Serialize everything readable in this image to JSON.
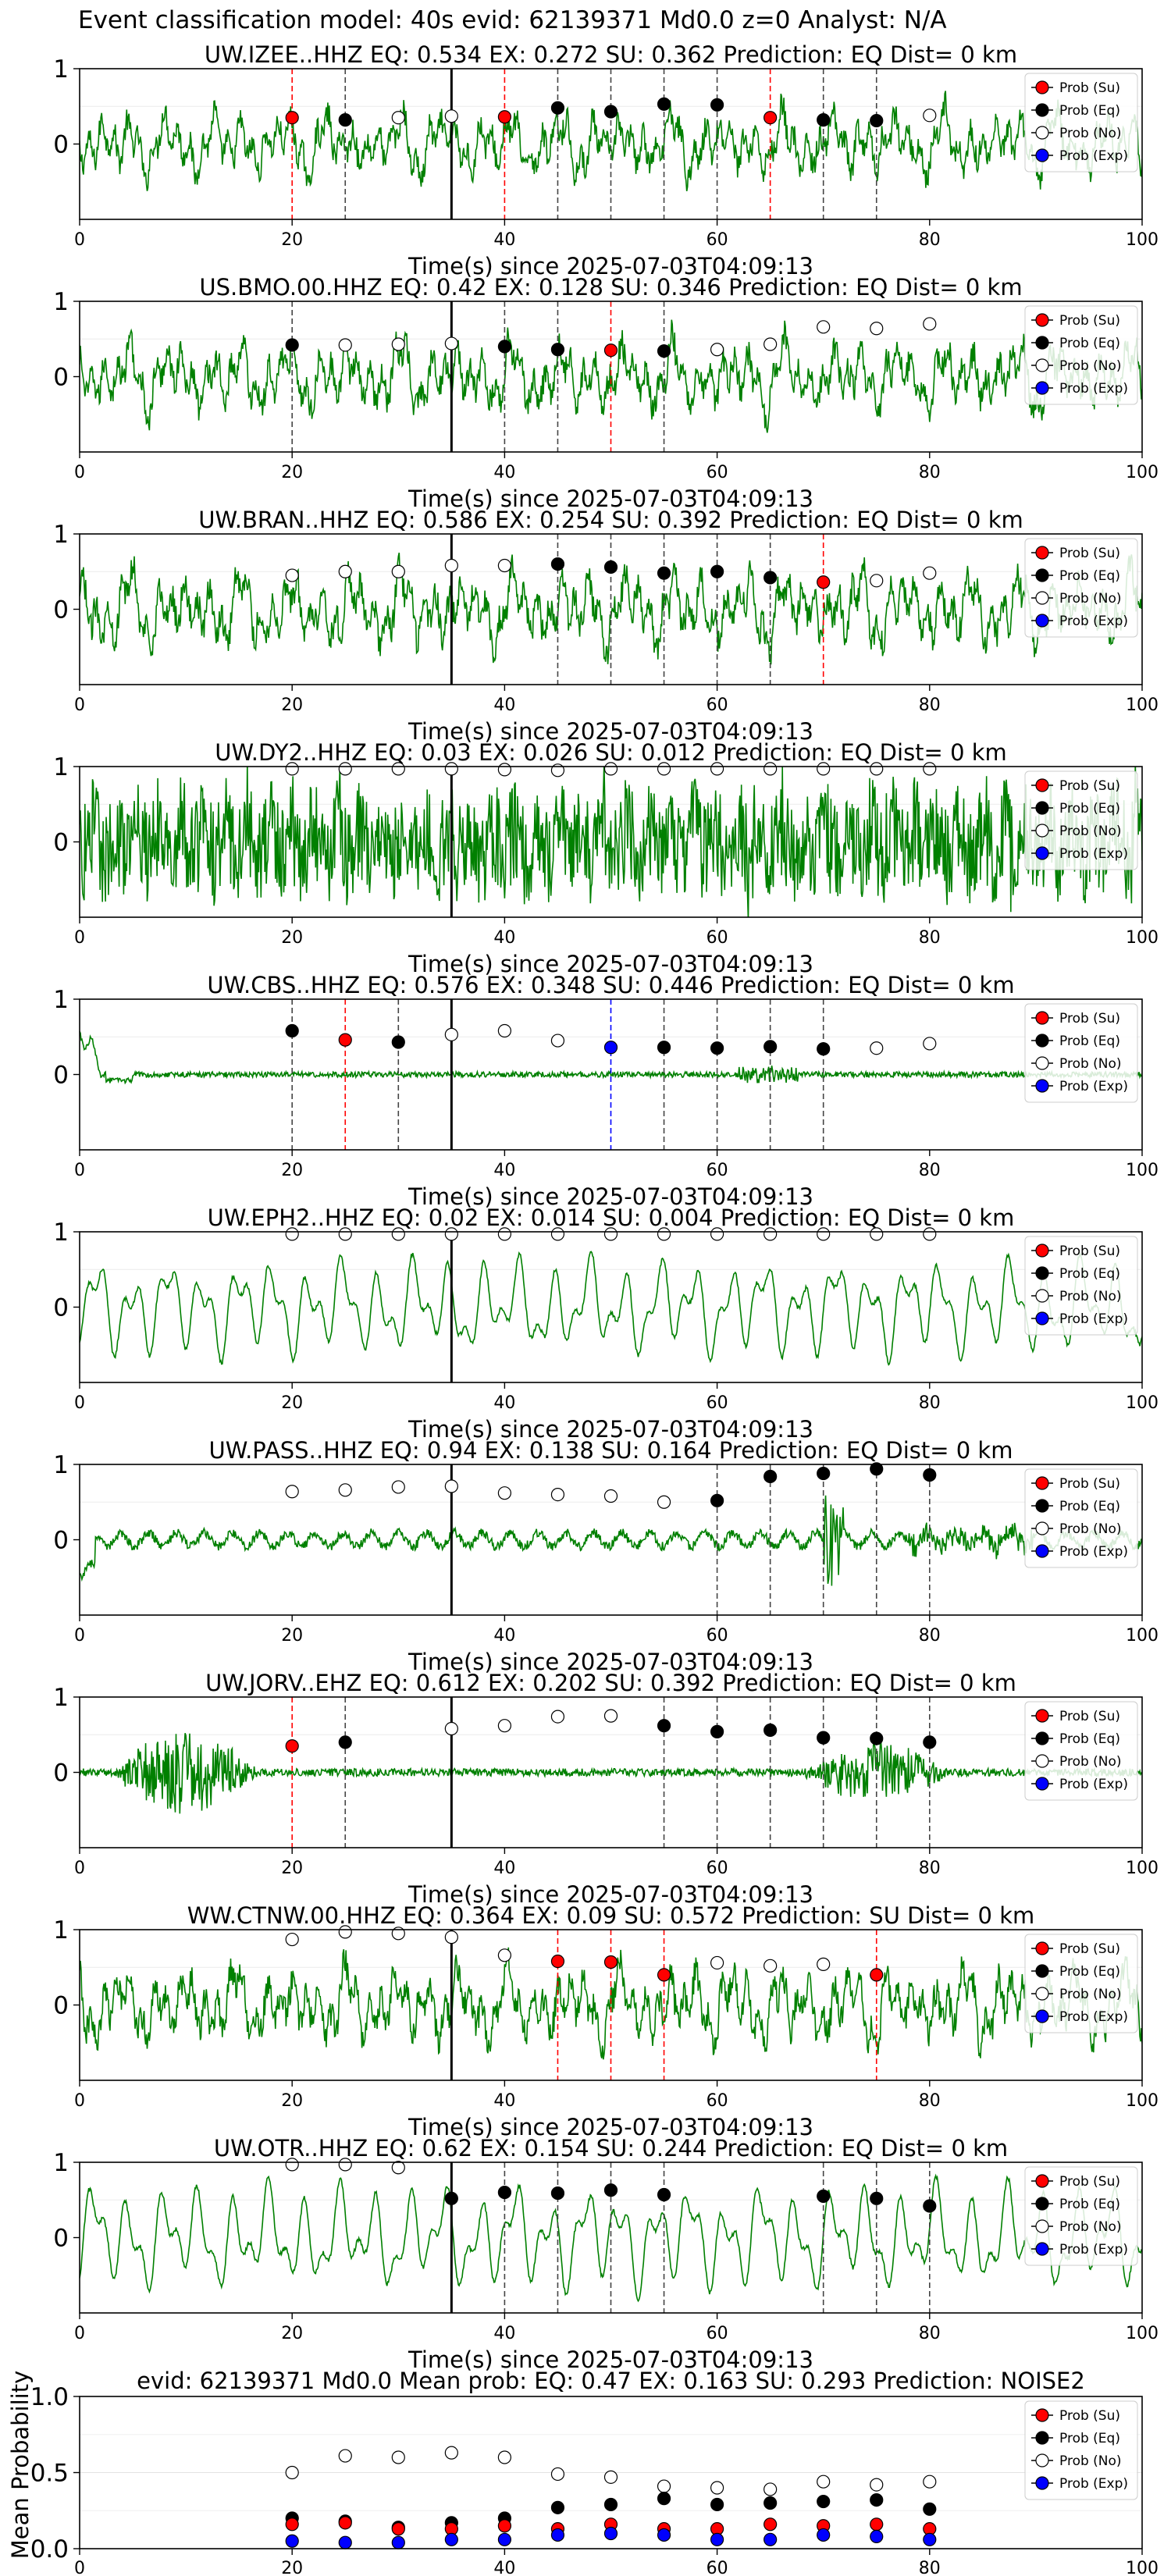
{
  "suptitle": "Event classification model: 40s evid: 62139371 Md0.0 z=0 Analyst: N/A",
  "chart_data": {
    "type": "line",
    "xlim": [
      0,
      100
    ],
    "xticks": [
      0,
      20,
      40,
      60,
      80,
      100
    ],
    "legend_placement": "top-right",
    "legend": [
      "Prob (Su)",
      "Prob (Eq)",
      "Prob (No)",
      "Prob (Exp)"
    ],
    "colors": {
      "su": "#ff0000",
      "eq": "#000000",
      "no": "#ffffff",
      "exp": "#0000ff",
      "waveform": "#008000"
    },
    "pick_line_x": 35,
    "panels": [
      {
        "title": "UW.IZEE..HHZ   EQ: 0.534  EX: 0.272  SU: 0.362   Prediction: EQ    Dist= 0 km",
        "xlabel": "Time(s) since 2025-07-03T04:09:13",
        "ylim": [
          -1,
          1
        ],
        "yticks": [
          0,
          1
        ],
        "waveform_style": "noisy",
        "waveform_amplitude": 0.6,
        "points": [
          {
            "x": 20,
            "y": 0.35,
            "cls": "su"
          },
          {
            "x": 25,
            "y": 0.32,
            "cls": "eq"
          },
          {
            "x": 30,
            "y": 0.35,
            "cls": "no"
          },
          {
            "x": 35,
            "y": 0.37,
            "cls": "no"
          },
          {
            "x": 40,
            "y": 0.36,
            "cls": "su"
          },
          {
            "x": 45,
            "y": 0.48,
            "cls": "eq"
          },
          {
            "x": 50,
            "y": 0.43,
            "cls": "eq"
          },
          {
            "x": 55,
            "y": 0.53,
            "cls": "eq"
          },
          {
            "x": 60,
            "y": 0.52,
            "cls": "eq"
          },
          {
            "x": 65,
            "y": 0.35,
            "cls": "su"
          },
          {
            "x": 70,
            "y": 0.32,
            "cls": "eq"
          },
          {
            "x": 75,
            "y": 0.31,
            "cls": "eq"
          },
          {
            "x": 80,
            "y": 0.38,
            "cls": "no"
          }
        ]
      },
      {
        "title": "US.BMO.00.HHZ   EQ: 0.42  EX: 0.128  SU: 0.346   Prediction: EQ    Dist= 0 km",
        "xlabel": "Time(s) since 2025-07-03T04:09:13",
        "ylim": [
          -1,
          1
        ],
        "yticks": [
          0,
          1
        ],
        "waveform_style": "noisy",
        "waveform_amplitude": 0.65,
        "points": [
          {
            "x": 20,
            "y": 0.42,
            "cls": "eq"
          },
          {
            "x": 25,
            "y": 0.42,
            "cls": "no"
          },
          {
            "x": 30,
            "y": 0.43,
            "cls": "no"
          },
          {
            "x": 35,
            "y": 0.44,
            "cls": "no"
          },
          {
            "x": 40,
            "y": 0.4,
            "cls": "eq"
          },
          {
            "x": 45,
            "y": 0.36,
            "cls": "eq"
          },
          {
            "x": 50,
            "y": 0.35,
            "cls": "su"
          },
          {
            "x": 55,
            "y": 0.34,
            "cls": "eq"
          },
          {
            "x": 60,
            "y": 0.36,
            "cls": "no"
          },
          {
            "x": 65,
            "y": 0.43,
            "cls": "no"
          },
          {
            "x": 70,
            "y": 0.66,
            "cls": "no"
          },
          {
            "x": 75,
            "y": 0.64,
            "cls": "no"
          },
          {
            "x": 80,
            "y": 0.7,
            "cls": "no"
          }
        ]
      },
      {
        "title": "UW.BRAN..HHZ   EQ: 0.586  EX: 0.254  SU: 0.392   Prediction: EQ    Dist= 0 km",
        "xlabel": "Time(s) since 2025-07-03T04:09:13",
        "ylim": [
          -1,
          1
        ],
        "yticks": [
          0,
          1
        ],
        "waveform_style": "noisy",
        "waveform_amplitude": 0.7,
        "points": [
          {
            "x": 20,
            "y": 0.45,
            "cls": "no"
          },
          {
            "x": 25,
            "y": 0.5,
            "cls": "no"
          },
          {
            "x": 30,
            "y": 0.5,
            "cls": "no"
          },
          {
            "x": 35,
            "y": 0.58,
            "cls": "no"
          },
          {
            "x": 40,
            "y": 0.58,
            "cls": "no"
          },
          {
            "x": 45,
            "y": 0.6,
            "cls": "eq"
          },
          {
            "x": 50,
            "y": 0.56,
            "cls": "eq"
          },
          {
            "x": 55,
            "y": 0.48,
            "cls": "eq"
          },
          {
            "x": 60,
            "y": 0.5,
            "cls": "eq"
          },
          {
            "x": 65,
            "y": 0.42,
            "cls": "eq"
          },
          {
            "x": 70,
            "y": 0.36,
            "cls": "su"
          },
          {
            "x": 75,
            "y": 0.38,
            "cls": "no"
          },
          {
            "x": 80,
            "y": 0.48,
            "cls": "no"
          }
        ]
      },
      {
        "title": "UW.DY2..HHZ   EQ: 0.03  EX: 0.026  SU: 0.012   Prediction: EQ    Dist= 0 km",
        "xlabel": "Time(s) since 2025-07-03T04:09:13",
        "ylim": [
          -1,
          1
        ],
        "yticks": [
          0,
          1
        ],
        "waveform_style": "dense",
        "waveform_amplitude": 0.85,
        "points": [
          {
            "x": 20,
            "y": 0.97,
            "cls": "no"
          },
          {
            "x": 25,
            "y": 0.97,
            "cls": "no"
          },
          {
            "x": 30,
            "y": 0.97,
            "cls": "no"
          },
          {
            "x": 35,
            "y": 0.97,
            "cls": "no"
          },
          {
            "x": 40,
            "y": 0.96,
            "cls": "no"
          },
          {
            "x": 45,
            "y": 0.95,
            "cls": "no"
          },
          {
            "x": 50,
            "y": 0.97,
            "cls": "no"
          },
          {
            "x": 55,
            "y": 0.97,
            "cls": "no"
          },
          {
            "x": 60,
            "y": 0.97,
            "cls": "no"
          },
          {
            "x": 65,
            "y": 0.97,
            "cls": "no"
          },
          {
            "x": 70,
            "y": 0.97,
            "cls": "no"
          },
          {
            "x": 75,
            "y": 0.97,
            "cls": "no"
          },
          {
            "x": 80,
            "y": 0.97,
            "cls": "no"
          }
        ]
      },
      {
        "title": "UW.CBS..HHZ   EQ: 0.576  EX: 0.348  SU: 0.446   Prediction: EQ    Dist= 0 km",
        "xlabel": "Time(s) since 2025-07-03T04:09:13",
        "ylim": [
          -1,
          1
        ],
        "yticks": [
          0,
          1
        ],
        "waveform_style": "quiet",
        "waveform_amplitude": 0.06,
        "points": [
          {
            "x": 20,
            "y": 0.58,
            "cls": "eq"
          },
          {
            "x": 25,
            "y": 0.46,
            "cls": "su"
          },
          {
            "x": 30,
            "y": 0.43,
            "cls": "eq"
          },
          {
            "x": 35,
            "y": 0.53,
            "cls": "no"
          },
          {
            "x": 40,
            "y": 0.58,
            "cls": "no"
          },
          {
            "x": 45,
            "y": 0.45,
            "cls": "no"
          },
          {
            "x": 50,
            "y": 0.36,
            "cls": "exp"
          },
          {
            "x": 55,
            "y": 0.36,
            "cls": "eq"
          },
          {
            "x": 60,
            "y": 0.35,
            "cls": "eq"
          },
          {
            "x": 65,
            "y": 0.37,
            "cls": "eq"
          },
          {
            "x": 70,
            "y": 0.34,
            "cls": "eq"
          },
          {
            "x": 75,
            "y": 0.35,
            "cls": "no"
          },
          {
            "x": 80,
            "y": 0.41,
            "cls": "no"
          }
        ]
      },
      {
        "title": "UW.EPH2..HHZ   EQ: 0.02  EX: 0.014  SU: 0.004   Prediction: EQ    Dist= 0 km",
        "xlabel": "Time(s) since 2025-07-03T04:09:13",
        "ylim": [
          -1,
          1
        ],
        "yticks": [
          0,
          1
        ],
        "waveform_style": "smooth",
        "waveform_amplitude": 0.7,
        "points": [
          {
            "x": 20,
            "y": 0.97,
            "cls": "no"
          },
          {
            "x": 25,
            "y": 0.97,
            "cls": "no"
          },
          {
            "x": 30,
            "y": 0.97,
            "cls": "no"
          },
          {
            "x": 35,
            "y": 0.97,
            "cls": "no"
          },
          {
            "x": 40,
            "y": 0.97,
            "cls": "no"
          },
          {
            "x": 45,
            "y": 0.97,
            "cls": "no"
          },
          {
            "x": 50,
            "y": 0.97,
            "cls": "no"
          },
          {
            "x": 55,
            "y": 0.97,
            "cls": "no"
          },
          {
            "x": 60,
            "y": 0.97,
            "cls": "no"
          },
          {
            "x": 65,
            "y": 0.97,
            "cls": "no"
          },
          {
            "x": 70,
            "y": 0.97,
            "cls": "no"
          },
          {
            "x": 75,
            "y": 0.97,
            "cls": "no"
          },
          {
            "x": 80,
            "y": 0.97,
            "cls": "no"
          }
        ]
      },
      {
        "title": "UW.PASS..HHZ   EQ: 0.94  EX: 0.138  SU: 0.164   Prediction: EQ    Dist= 0 km",
        "xlabel": "Time(s) since 2025-07-03T04:09:13",
        "ylim": [
          -1,
          1
        ],
        "yticks": [
          0,
          1
        ],
        "waveform_style": "low",
        "waveform_amplitude": 0.15,
        "points": [
          {
            "x": 20,
            "y": 0.64,
            "cls": "no"
          },
          {
            "x": 25,
            "y": 0.66,
            "cls": "no"
          },
          {
            "x": 30,
            "y": 0.7,
            "cls": "no"
          },
          {
            "x": 35,
            "y": 0.71,
            "cls": "no"
          },
          {
            "x": 40,
            "y": 0.62,
            "cls": "no"
          },
          {
            "x": 45,
            "y": 0.6,
            "cls": "no"
          },
          {
            "x": 50,
            "y": 0.58,
            "cls": "no"
          },
          {
            "x": 55,
            "y": 0.5,
            "cls": "no"
          },
          {
            "x": 60,
            "y": 0.52,
            "cls": "eq"
          },
          {
            "x": 65,
            "y": 0.84,
            "cls": "eq"
          },
          {
            "x": 70,
            "y": 0.88,
            "cls": "eq"
          },
          {
            "x": 75,
            "y": 0.94,
            "cls": "eq"
          },
          {
            "x": 80,
            "y": 0.86,
            "cls": "eq"
          }
        ]
      },
      {
        "title": "UW.JORV..EHZ   EQ: 0.612  EX: 0.202  SU: 0.392   Prediction: EQ    Dist= 0 km",
        "xlabel": "Time(s) since 2025-07-03T04:09:13",
        "ylim": [
          -1,
          1
        ],
        "yticks": [
          0,
          1
        ],
        "waveform_style": "bursts",
        "waveform_amplitude": 0.05,
        "points": [
          {
            "x": 20,
            "y": 0.35,
            "cls": "su"
          },
          {
            "x": 25,
            "y": 0.4,
            "cls": "eq"
          },
          {
            "x": 35,
            "y": 0.58,
            "cls": "no"
          },
          {
            "x": 40,
            "y": 0.62,
            "cls": "no"
          },
          {
            "x": 45,
            "y": 0.74,
            "cls": "no"
          },
          {
            "x": 50,
            "y": 0.75,
            "cls": "no"
          },
          {
            "x": 55,
            "y": 0.62,
            "cls": "eq"
          },
          {
            "x": 60,
            "y": 0.54,
            "cls": "eq"
          },
          {
            "x": 65,
            "y": 0.56,
            "cls": "eq"
          },
          {
            "x": 70,
            "y": 0.46,
            "cls": "eq"
          },
          {
            "x": 75,
            "y": 0.45,
            "cls": "eq"
          },
          {
            "x": 80,
            "y": 0.4,
            "cls": "eq"
          }
        ]
      },
      {
        "title": "WW.CTNW.00.HHZ   EQ: 0.364  EX: 0.09  SU: 0.572   Prediction: SU    Dist= 0 km",
        "xlabel": "Time(s) since 2025-07-03T04:09:13",
        "ylim": [
          -1,
          1
        ],
        "yticks": [
          0,
          1
        ],
        "waveform_style": "noisy",
        "waveform_amplitude": 0.7,
        "points": [
          {
            "x": 20,
            "y": 0.87,
            "cls": "no"
          },
          {
            "x": 25,
            "y": 0.97,
            "cls": "no"
          },
          {
            "x": 30,
            "y": 0.95,
            "cls": "no"
          },
          {
            "x": 35,
            "y": 0.9,
            "cls": "no"
          },
          {
            "x": 40,
            "y": 0.66,
            "cls": "no"
          },
          {
            "x": 45,
            "y": 0.58,
            "cls": "su"
          },
          {
            "x": 50,
            "y": 0.57,
            "cls": "su"
          },
          {
            "x": 55,
            "y": 0.4,
            "cls": "su"
          },
          {
            "x": 60,
            "y": 0.56,
            "cls": "no"
          },
          {
            "x": 65,
            "y": 0.52,
            "cls": "no"
          },
          {
            "x": 70,
            "y": 0.54,
            "cls": "no"
          },
          {
            "x": 75,
            "y": 0.4,
            "cls": "su"
          }
        ]
      },
      {
        "title": "UW.OTR..HHZ   EQ: 0.62  EX: 0.154  SU: 0.244   Prediction: EQ    Dist= 0 km",
        "xlabel": "Time(s) since 2025-07-03T04:09:13",
        "ylim": [
          -1,
          1
        ],
        "yticks": [
          0,
          1
        ],
        "waveform_style": "smooth",
        "waveform_amplitude": 0.75,
        "points": [
          {
            "x": 20,
            "y": 0.97,
            "cls": "no"
          },
          {
            "x": 25,
            "y": 0.97,
            "cls": "no"
          },
          {
            "x": 30,
            "y": 0.93,
            "cls": "no"
          },
          {
            "x": 35,
            "y": 0.52,
            "cls": "eq"
          },
          {
            "x": 40,
            "y": 0.6,
            "cls": "eq"
          },
          {
            "x": 45,
            "y": 0.59,
            "cls": "eq"
          },
          {
            "x": 50,
            "y": 0.63,
            "cls": "eq"
          },
          {
            "x": 55,
            "y": 0.57,
            "cls": "eq"
          },
          {
            "x": 70,
            "y": 0.55,
            "cls": "eq"
          },
          {
            "x": 75,
            "y": 0.52,
            "cls": "eq"
          },
          {
            "x": 80,
            "y": 0.42,
            "cls": "eq"
          }
        ]
      }
    ],
    "summary": {
      "title": "evid: 62139371  Md0.0   Mean prob:   EQ: 0.47  EX: 0.163  SU: 0.293   Prediction: NOISE2",
      "ylabel": "Mean Probability",
      "ylim": [
        0,
        1
      ],
      "yticks": [
        0.0,
        0.5,
        1.0
      ],
      "x": [
        20,
        25,
        30,
        35,
        40,
        45,
        50,
        55,
        60,
        65,
        70,
        75,
        80
      ],
      "series": [
        {
          "cls": "no",
          "values": [
            0.5,
            0.61,
            0.6,
            0.63,
            0.6,
            0.49,
            0.47,
            0.41,
            0.4,
            0.39,
            0.44,
            0.42,
            0.44
          ]
        },
        {
          "cls": "eq",
          "values": [
            0.2,
            0.18,
            0.14,
            0.17,
            0.2,
            0.27,
            0.29,
            0.33,
            0.29,
            0.3,
            0.31,
            0.32,
            0.26
          ]
        },
        {
          "cls": "su",
          "values": [
            0.16,
            0.17,
            0.13,
            0.13,
            0.15,
            0.13,
            0.16,
            0.13,
            0.13,
            0.16,
            0.15,
            0.16,
            0.13
          ]
        },
        {
          "cls": "exp",
          "values": [
            0.05,
            0.04,
            0.04,
            0.06,
            0.06,
            0.09,
            0.1,
            0.09,
            0.06,
            0.06,
            0.09,
            0.08,
            0.06
          ]
        }
      ]
    }
  }
}
